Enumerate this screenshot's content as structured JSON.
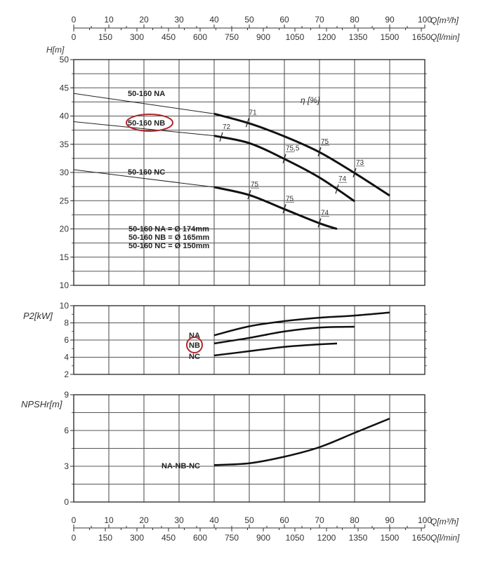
{
  "axes": {
    "q_m3h": {
      "label": "Q[m³/h]",
      "ticks": [
        0,
        10,
        20,
        30,
        40,
        50,
        60,
        70,
        80,
        90,
        100
      ]
    },
    "q_lmin": {
      "label": "Q[l/min]",
      "ticks": [
        0,
        150,
        300,
        450,
        600,
        750,
        900,
        1050,
        1200,
        1350,
        1500,
        1650
      ]
    }
  },
  "chart_data": [
    {
      "type": "line",
      "ylabel": "H[m]",
      "xlim": [
        0,
        100
      ],
      "ylim": [
        10,
        50
      ],
      "yticks": [
        10,
        15,
        20,
        25,
        30,
        35,
        40,
        45,
        50
      ],
      "grid": true,
      "annotation": "η [%]",
      "series": [
        {
          "name": "50-160 NA",
          "x": [
            0,
            40,
            50,
            60,
            70,
            80,
            90
          ],
          "y": [
            44,
            40.4,
            38.7,
            36.4,
            33.6,
            29.9,
            25.9
          ],
          "efficiency": [
            {
              "q": 49.5,
              "label": "71"
            },
            {
              "q": 70,
              "label": "75"
            },
            {
              "q": 80,
              "label": "73"
            }
          ]
        },
        {
          "name": "50-160 NB",
          "x": [
            0,
            40,
            50,
            60,
            70,
            80
          ],
          "y": [
            39,
            36.5,
            35.2,
            32.4,
            29.1,
            24.9
          ],
          "efficiency": [
            {
              "q": 42,
              "label": "72"
            },
            {
              "q": 60,
              "label": "75,5"
            },
            {
              "q": 75,
              "label": "74"
            }
          ]
        },
        {
          "name": "50-160 NC",
          "x": [
            0,
            40,
            50,
            60,
            70,
            75
          ],
          "y": [
            30.5,
            27.4,
            26.0,
            23.5,
            21.0,
            20.0
          ],
          "efficiency": [
            {
              "q": 50,
              "label": "75"
            },
            {
              "q": 60,
              "label": "75"
            },
            {
              "q": 70,
              "label": "74"
            }
          ]
        }
      ],
      "legend": [
        "50-160 NA = Ø 174mm",
        "50-160 NB = Ø 165mm",
        "50-160 NC = Ø 150mm"
      ],
      "highlight": "50-160 NB",
      "highlight_color": "#b0262a"
    },
    {
      "type": "line",
      "ylabel": "P2[kW]",
      "xlim": [
        0,
        100
      ],
      "ylim": [
        2,
        10
      ],
      "yticks": [
        2,
        4,
        6,
        8,
        10
      ],
      "grid": true,
      "series": [
        {
          "name": "NA",
          "x": [
            40,
            50,
            60,
            70,
            80,
            90
          ],
          "y": [
            6.55,
            7.6,
            8.2,
            8.6,
            8.85,
            9.2
          ]
        },
        {
          "name": "NB",
          "x": [
            40,
            50,
            60,
            70,
            80
          ],
          "y": [
            5.6,
            6.25,
            7.0,
            7.45,
            7.55
          ]
        },
        {
          "name": "NC",
          "x": [
            40,
            50,
            60,
            70,
            75
          ],
          "y": [
            4.2,
            4.7,
            5.2,
            5.5,
            5.6
          ]
        }
      ],
      "highlight": "NB",
      "highlight_color": "#b0262a"
    },
    {
      "type": "line",
      "ylabel": "NPSHr[m]",
      "xlim": [
        0,
        100
      ],
      "ylim": [
        0,
        9
      ],
      "yticks": [
        0,
        3,
        6,
        9
      ],
      "grid": true,
      "series": [
        {
          "name": "NA-NB-NC",
          "x": [
            40,
            50,
            60,
            70,
            80,
            90
          ],
          "y": [
            3.1,
            3.25,
            3.8,
            4.6,
            5.8,
            7.0
          ]
        }
      ]
    }
  ]
}
